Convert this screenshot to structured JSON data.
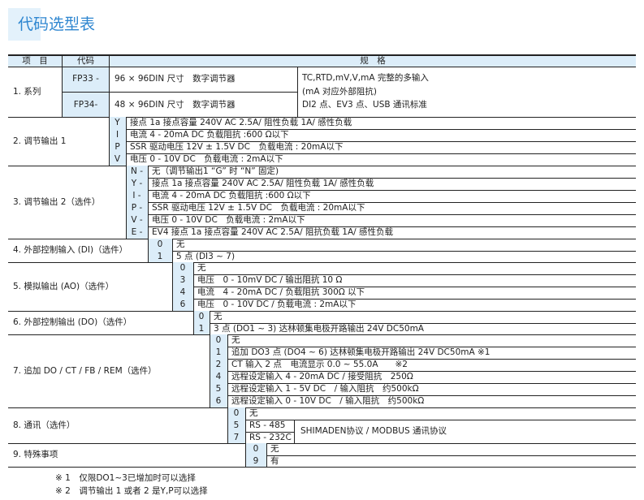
{
  "title": "代码选型表",
  "header": {
    "item": "项　目",
    "code": "代码",
    "spec": "规　格"
  },
  "series": {
    "label": "1. 系列",
    "models": [
      {
        "code": "FP33 -",
        "text": "96 × 96DIN 尺寸　数字调节器"
      },
      {
        "code": "FP34-",
        "text": "48 × 96DIN 尺寸　数字调节器"
      }
    ],
    "common_lines": [
      "TC,RTD,mV,V,mA 完整的多输入",
      "(mA 对应外部阻抗)",
      "DI2 点、EV3 点、USB 通讯标准"
    ]
  },
  "sections": [
    {
      "label": "2. 调节输出 1",
      "options": [
        {
          "code": "Y",
          "text": "接点 1a 接点容量 240V AC 2.5A/ 阻性负载  1A/ 感性负载"
        },
        {
          "code": "I",
          "text": "电流 4 - 20mA DC 负载阻抗 :600 Ω以下"
        },
        {
          "code": "P",
          "text": "SSR 驱动电压 12V ± 1.5V DC　负载电流 : 20mA以下"
        },
        {
          "code": "V",
          "text": "电压 0 - 10V DC　负载电流 : 2mA以下"
        }
      ]
    },
    {
      "label": "3. 调节输出 2（选件）",
      "options": [
        {
          "code": "N -",
          "text": "无（调节输出1 “G” 时 “N” 固定)"
        },
        {
          "code": "Y -",
          "text": "接点 1a 接点容量 240V AC 2.5A/ 阻性负载  1A/ 感性负载"
        },
        {
          "code": "I -",
          "text": "电流 4 - 20mA DC 负载阻抗 :600 Ω以下"
        },
        {
          "code": "P -",
          "text": "SSR 驱动电压 12V ± 1.5V DC　负载电流 : 20mA以下"
        },
        {
          "code": "V -",
          "text": "电压 0 - 10V DC　负载电流 : 2mA以下"
        },
        {
          "code": "E -",
          "text": "EV4 接点 1a 接点容量 240V AC 2.5A/ 阻抗负载  1A/ 感性负载"
        }
      ]
    },
    {
      "label": "4. 外部控制输入 (DI)（选件）",
      "options": [
        {
          "code": "0",
          "text": "无"
        },
        {
          "code": "1",
          "text": "5 点 (DI3 ~ 7)"
        }
      ]
    },
    {
      "label": "5. 模拟输出 (AO)（选件）",
      "options": [
        {
          "code": "0",
          "text": "无"
        },
        {
          "code": "3",
          "text": "电压　0 - 10mV DC / 输出阻抗 10 Ω"
        },
        {
          "code": "4",
          "text": "电流　4 - 20mA DC / 负载阻抗 300Ω 以下"
        },
        {
          "code": "6",
          "text": "电压　0 - 10V DC / 负载电流 : 2mA以下"
        }
      ]
    },
    {
      "label": "6. 外部控制输出 (DO)（选件）",
      "options": [
        {
          "code": "0",
          "text": "无"
        },
        {
          "code": "1",
          "text": "3 点 (DO1 ~ 3) 达林顿集电极开路输出  24V DC50mA"
        }
      ]
    },
    {
      "label": "7. 追加 DO / CT / FB / REM（选件）",
      "options": [
        {
          "code": "0",
          "text": "无"
        },
        {
          "code": "1",
          "text": "追加 DO3 点 (DO4 ~ 6) 达林顿集电极开路输出  24V DC50mA ※1"
        },
        {
          "code": "2",
          "text": "CT 输入 2 点　电流显示 0.0 ~ 55.0A　　※2"
        },
        {
          "code": "4",
          "text": "远程设定输入 4 - 20mA DC / 接受阻抗　250Ω"
        },
        {
          "code": "5",
          "text": "远程设定输入 1 - 5V DC　/ 输入阻抗　约500kΩ"
        },
        {
          "code": "6",
          "text": "远程设定输入 0 - 10V DC　/ 输入阻抗　约500kΩ"
        }
      ]
    },
    {
      "label": "8. 通讯（选件）",
      "options": [
        {
          "code": "0",
          "text": "无"
        },
        {
          "code": "5",
          "text": "RS - 485"
        },
        {
          "code": "7",
          "text": "RS - 232C"
        }
      ],
      "protocol": "SHIMADEN协议 / MODBUS 通讯协议"
    },
    {
      "label": "9. 特殊事项",
      "options": [
        {
          "code": "0",
          "text": "无"
        },
        {
          "code": "9",
          "text": "有"
        }
      ]
    }
  ],
  "footnotes": [
    "※ 1　仅限DO1~3已增加时可以选择",
    "※ 2　调节输出 1 或者 2 是Y,P可以选择"
  ]
}
